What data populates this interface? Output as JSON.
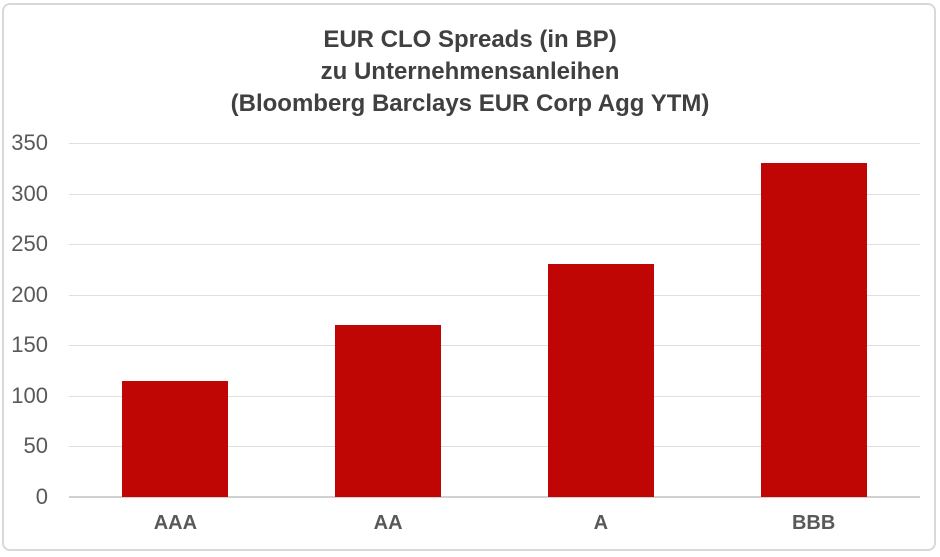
{
  "chart_data": {
    "type": "bar",
    "title_lines": [
      "EUR CLO Spreads (in BP)",
      "zu Unternehmensanleihen",
      "(Bloomberg Barclays EUR Corp Agg YTM)"
    ],
    "title": "EUR CLO Spreads (in BP) zu Unternehmensanleihen (Bloomberg Barclays EUR Corp Agg YTM)",
    "categories": [
      "AAA",
      "AA",
      "A",
      "BBB"
    ],
    "values": [
      115,
      170,
      230,
      330
    ],
    "xlabel": "",
    "ylabel": "",
    "ylim": [
      0,
      350
    ],
    "yticks": [
      0,
      50,
      100,
      150,
      200,
      250,
      300,
      350
    ],
    "grid": true,
    "legend": false,
    "bar_color": "#C00505",
    "title_color": "#404040",
    "tick_label_color": "#595959",
    "gridline_color": "#DFDFDF",
    "border_color": "#D9D9D9"
  }
}
